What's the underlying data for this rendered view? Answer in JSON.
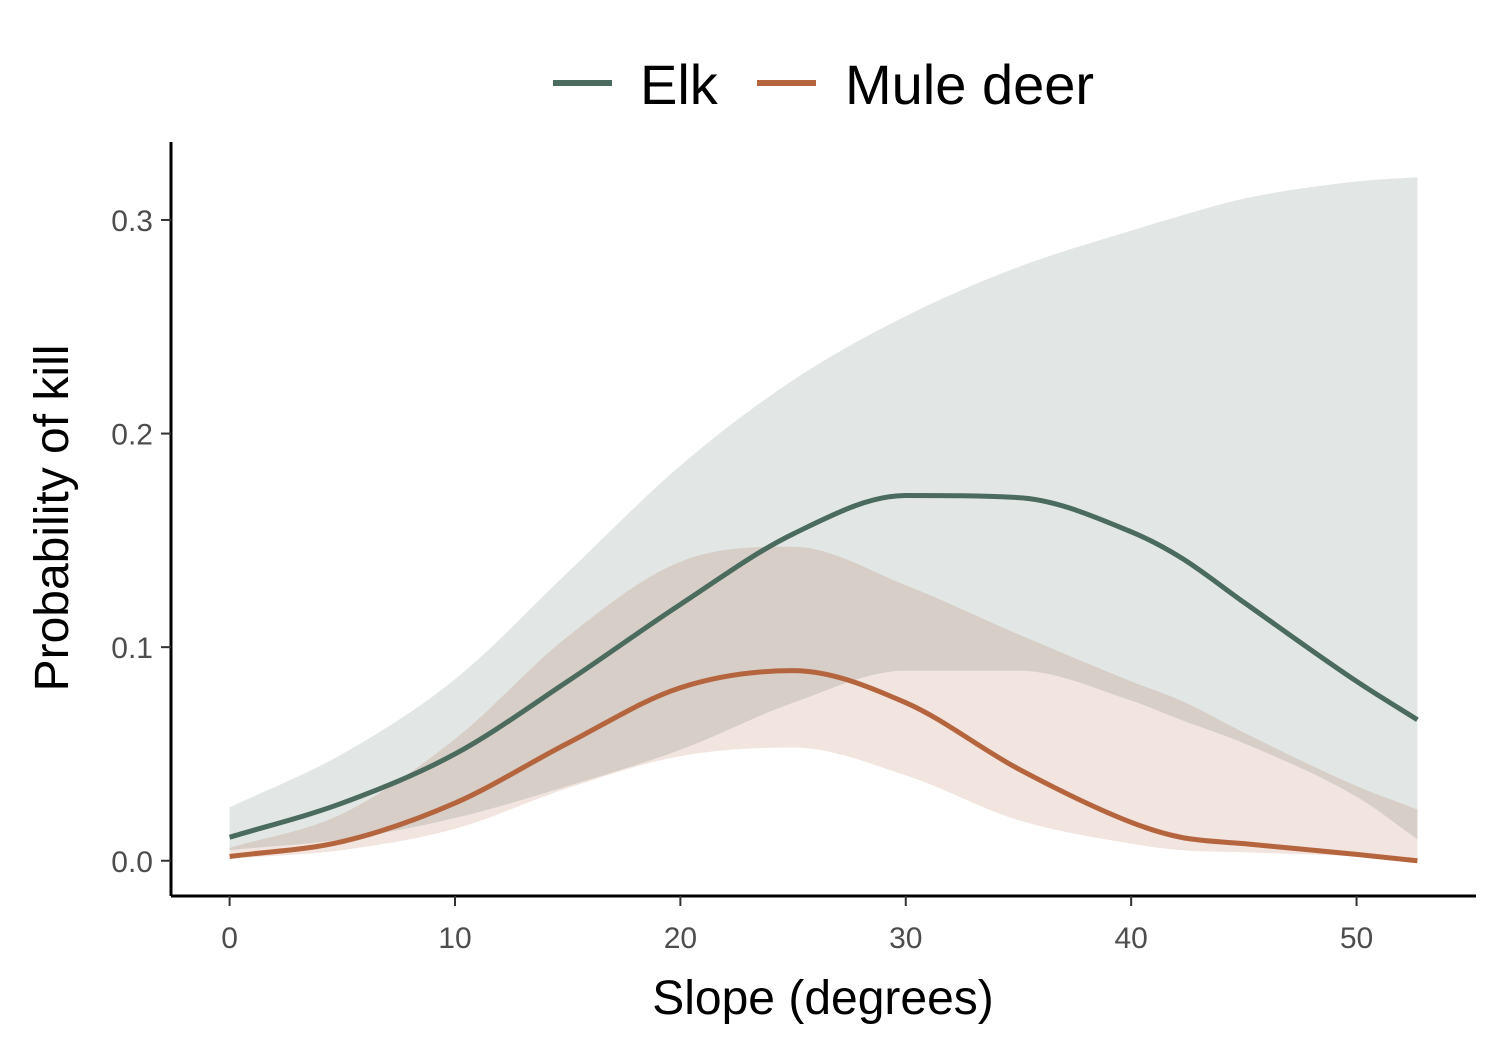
{
  "chart_data": {
    "type": "line",
    "xlabel": "Slope (degrees)",
    "ylabel": "Probability of kill",
    "xlim": [
      -2.6,
      55.3
    ],
    "ylim": [
      -0.0165,
      0.3365
    ],
    "x_ticks": [
      0,
      10,
      20,
      30,
      40,
      50
    ],
    "y_ticks": [
      0.0,
      0.1,
      0.2,
      0.3
    ],
    "x_tick_labels": [
      "0",
      "10",
      "20",
      "30",
      "40",
      "50"
    ],
    "y_tick_labels": [
      "0.0",
      "0.1",
      "0.2",
      "0.3"
    ],
    "grid": false,
    "legend_position": "top",
    "x": [
      0,
      5,
      10,
      15,
      20,
      25,
      30,
      35,
      40,
      42.2,
      45,
      50,
      52.7
    ],
    "series": [
      {
        "name": "Elk",
        "color": "#4a6b5e",
        "band_color": "#e2e7e5",
        "values": [
          0.011,
          0.027,
          0.05,
          0.084,
          0.12,
          0.153,
          0.171,
          0.17,
          0.154,
          0.142,
          0.121,
          0.084,
          0.066
        ],
        "lower": [
          0.005,
          0.01,
          0.02,
          0.035,
          0.052,
          0.074,
          0.089,
          0.089,
          0.075,
          0.066,
          0.055,
          0.03,
          0.01
        ],
        "upper": [
          0.025,
          0.05,
          0.085,
          0.135,
          0.185,
          0.225,
          0.255,
          0.278,
          0.295,
          0.302,
          0.31,
          0.318,
          0.32
        ]
      },
      {
        "name": "Mule deer",
        "color": "#b5653d",
        "band_color": "#f2e4de",
        "values": [
          0.002,
          0.009,
          0.027,
          0.055,
          0.081,
          0.089,
          0.074,
          0.043,
          0.018,
          0.011,
          0.008,
          0.003,
          0.0
        ],
        "lower": [
          0.001,
          0.005,
          0.015,
          0.034,
          0.049,
          0.053,
          0.04,
          0.019,
          0.008,
          0.005,
          0.004,
          0.002,
          0.0
        ],
        "upper": [
          0.006,
          0.022,
          0.057,
          0.105,
          0.14,
          0.147,
          0.129,
          0.106,
          0.084,
          0.075,
          0.06,
          0.035,
          0.024
        ]
      }
    ]
  }
}
